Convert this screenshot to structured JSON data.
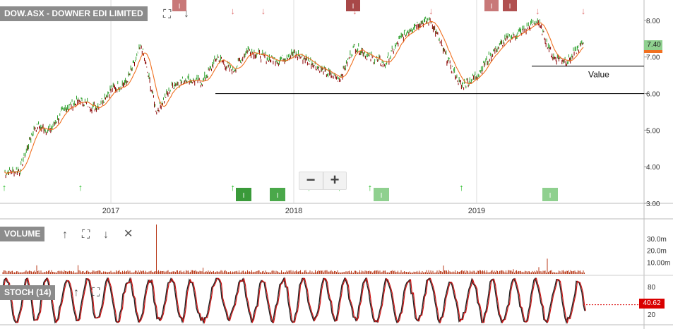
{
  "main": {
    "title": "DOW.ASX - DOWNER EDI LIMITED",
    "annotation": "Value",
    "price_badge": "7.40",
    "zoom_minus": "−",
    "zoom_plus": "+",
    "colors": {
      "up": "#2ca02c",
      "down": "#8b0000",
      "ma": "#f07020",
      "sell_arrow": "#e07070",
      "buy_arrow": "#22bb22",
      "badge": "#8fd08f"
    }
  },
  "volume": {
    "title": "VOLUME",
    "axis_labels": [
      "30.0m",
      "20.0m",
      "10.00m"
    ]
  },
  "stoch": {
    "title": "STOCH (14)",
    "axis_labels": [
      "80",
      "20"
    ],
    "badge": "40.62"
  },
  "chart_data": [
    {
      "type": "line",
      "title": "DOW.ASX - DOWNER EDI LIMITED",
      "x_tick_labels": [
        "2017",
        "2018",
        "2019"
      ],
      "y_tick_labels": [
        "8.00",
        "7.00",
        "6.00",
        "5.00",
        "4.00",
        "3.00"
      ],
      "ylim": [
        3.0,
        8.5
      ],
      "x": [
        "2016-06",
        "2016-07",
        "2016-08",
        "2016-09",
        "2016-10",
        "2016-11",
        "2016-12",
        "2017-01",
        "2017-02",
        "2017-03",
        "2017-04",
        "2017-05",
        "2017-06",
        "2017-07",
        "2017-08",
        "2017-09",
        "2017-10",
        "2017-11",
        "2017-12",
        "2018-01",
        "2018-02",
        "2018-03",
        "2018-04",
        "2018-05",
        "2018-06",
        "2018-07",
        "2018-08",
        "2018-09",
        "2018-10",
        "2018-11",
        "2018-12",
        "2019-01",
        "2019-02",
        "2019-03",
        "2019-04",
        "2019-05",
        "2019-06",
        "2019-07",
        "2019-08"
      ],
      "series": [
        {
          "values": [
            3.85,
            3.9,
            5.1,
            5.0,
            5.6,
            5.8,
            5.6,
            6.1,
            6.3,
            7.3,
            5.5,
            6.2,
            6.4,
            6.3,
            7.0,
            6.6,
            7.2,
            7.0,
            6.9,
            7.1,
            6.9,
            6.6,
            6.4,
            7.3,
            7.0,
            6.8,
            7.5,
            7.9,
            8.0,
            7.0,
            6.2,
            6.5,
            7.1,
            7.5,
            7.7,
            8.0,
            7.0,
            6.9,
            7.4
          ]
        }
      ],
      "horizontal_lines": [
        6.0,
        6.75
      ],
      "sell_arrows": [
        "2017-03",
        "2017-09",
        "2017-11",
        "2018-05",
        "2018-10",
        "2019-05",
        "2019-08"
      ],
      "buy_arrows": [
        "2016-06",
        "2016-11",
        "2017-09",
        "2018-02",
        "2018-04",
        "2018-06",
        "2018-12"
      ]
    },
    {
      "type": "bar",
      "title": "VOLUME",
      "y_tick_labels": [
        "30.0m",
        "20.0m",
        "10.00m"
      ],
      "peak_value_m": 42,
      "typical_value_m": 2.5
    },
    {
      "type": "line",
      "title": "STOCH (14)",
      "y_tick_labels": [
        "80",
        "20"
      ],
      "last_value": 40.62
    }
  ]
}
